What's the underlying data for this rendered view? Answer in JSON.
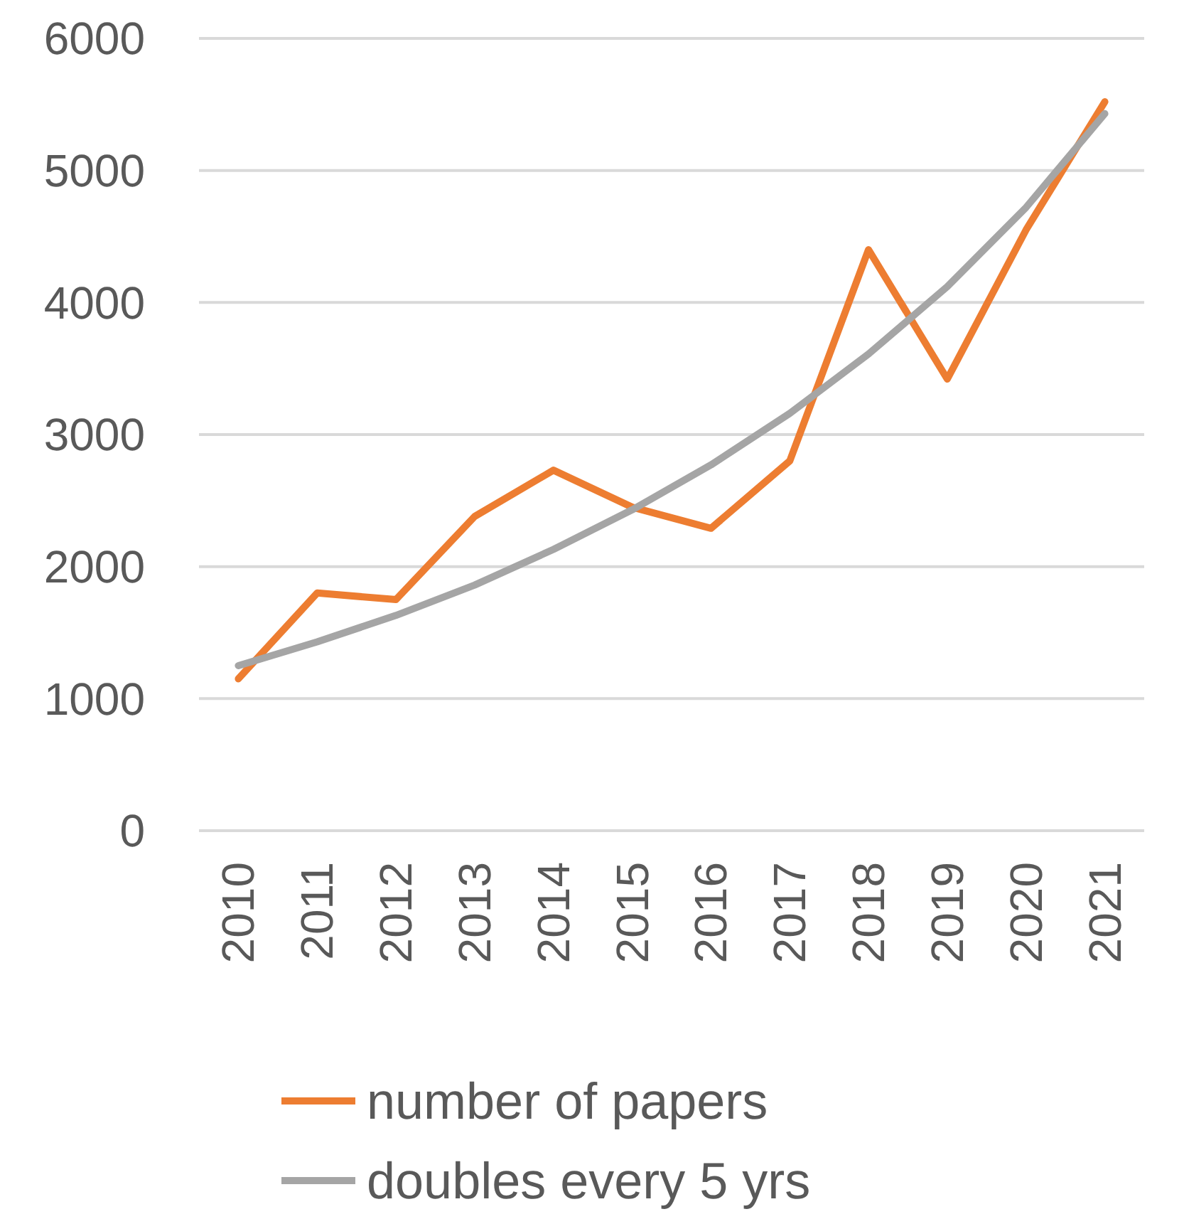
{
  "chart_data": {
    "type": "line",
    "categories": [
      "2010",
      "2011",
      "2012",
      "2013",
      "2014",
      "2015",
      "2016",
      "2017",
      "2018",
      "2019",
      "2020",
      "2021"
    ],
    "series": [
      {
        "name": "number of papers",
        "color": "#ed7d31",
        "values": [
          1150,
          1800,
          1750,
          2380,
          2730,
          2450,
          2290,
          2800,
          4400,
          3420,
          4550,
          5520
        ]
      },
      {
        "name": "doubles every 5 yrs",
        "color": "#a5a5a5",
        "values": [
          1250,
          1430,
          1630,
          1860,
          2130,
          2430,
          2770,
          3160,
          3610,
          4120,
          4720,
          5430
        ]
      }
    ],
    "ylim": [
      0,
      6000
    ],
    "yticks": [
      0,
      1000,
      2000,
      3000,
      4000,
      5000,
      6000
    ],
    "grid": "y",
    "legend": "bottom",
    "marker": "none",
    "line_style": "solid"
  }
}
